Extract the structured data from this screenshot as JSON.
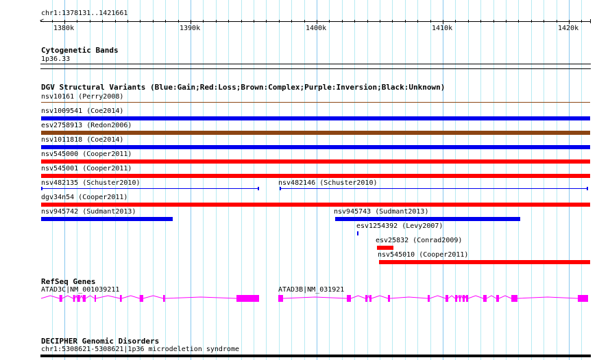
{
  "region": {
    "label": "chr1:1378131..1421661",
    "start": 1378131,
    "end": 1421661
  },
  "axis": {
    "tick_labels": [
      "1380k",
      "1390k",
      "1400k",
      "1410k",
      "1420k"
    ],
    "tick_values": [
      1380000,
      1390000,
      1400000,
      1410000,
      1420000
    ],
    "minor_step": 1000
  },
  "cytobands": {
    "title": "Cytogenetic Bands",
    "band": "1p36.33"
  },
  "dgv": {
    "title": "DGV Structural Variants (Blue:Gain;Red:Loss;Brown:Complex;Purple:Inversion;Black:Unknown)",
    "colors": {
      "gain": "#0000ee",
      "loss": "#ff0000",
      "complex": "#8b4513"
    },
    "rows": [
      [
        {
          "label": "nsv10161 (Perry2008)",
          "type": "complex",
          "start": 1378131,
          "end": 1421661,
          "thin": true
        }
      ],
      [
        {
          "label": "nsv1009541 (Coe2014)",
          "type": "gain",
          "start": 1378131,
          "end": 1421661
        }
      ],
      [
        {
          "label": "esv2758913 (Redon2006)",
          "type": "complex",
          "start": 1378131,
          "end": 1421661
        }
      ],
      [
        {
          "label": "nsv1011818 (Coe2014)",
          "type": "gain",
          "start": 1378131,
          "end": 1421661
        }
      ],
      [
        {
          "label": "nsv545000 (Cooper2011)",
          "type": "loss",
          "start": 1378131,
          "end": 1421661
        }
      ],
      [
        {
          "label": "nsv545001 (Cooper2011)",
          "type": "loss",
          "start": 1378131,
          "end": 1421661
        }
      ],
      [
        {
          "label": "nsv482135 (Schuster2010)",
          "type": "gain",
          "start": 1378131,
          "end": 1395435,
          "thin": true
        },
        {
          "label": "nsv482146 (Schuster2010)",
          "type": "gain",
          "start": 1397065,
          "end": 1421522,
          "thin": true
        }
      ],
      [
        {
          "label": "dgv34n54 (Cooper2011)",
          "type": "loss",
          "start": 1378131,
          "end": 1421661
        }
      ],
      [
        {
          "label": "nsv945742 (Sudmant2013)",
          "type": "gain",
          "start": 1378131,
          "end": 1388587
        },
        {
          "label": "nsv945743 (Sudmant2013)",
          "type": "gain",
          "start": 1401467,
          "end": 1416141
        }
      ],
      [
        {
          "label": "esv1254392 (Levy2007)",
          "type": "gain",
          "start": 1403207,
          "end": 1403300
        }
      ],
      [
        {
          "label": "esv25832 (Conrad2009)",
          "type": "loss",
          "start": 1404783,
          "end": 1406087
        }
      ],
      [
        {
          "label": "nsv545010 (Cooper2011)",
          "type": "loss",
          "start": 1404946,
          "end": 1421661
        }
      ]
    ]
  },
  "refseq": {
    "title": "RefSeq Genes",
    "color": "#ff00ff",
    "genes": [
      {
        "label": "ATAD3C|NM_001039211",
        "start": 1378152,
        "end": 1395435,
        "exons": [
          [
            1379603,
            1379821
          ],
          [
            1380690,
            1380832
          ],
          [
            1381016,
            1381234
          ],
          [
            1381451,
            1381685
          ],
          [
            1382391,
            1382500
          ],
          [
            1384402,
            1384549
          ],
          [
            1385962,
            1386250
          ],
          [
            1387826,
            1387973
          ],
          [
            1393642,
            1395435
          ]
        ]
      },
      {
        "label": "ATAD3B|NM_031921",
        "start": 1396957,
        "end": 1421522,
        "exons": [
          [
            1396957,
            1397338
          ],
          [
            1402392,
            1402718
          ],
          [
            1403860,
            1404023
          ],
          [
            1404186,
            1404349
          ],
          [
            1405653,
            1405816
          ],
          [
            1408806,
            1408969
          ],
          [
            1410219,
            1410436
          ],
          [
            1410980,
            1411143
          ],
          [
            1411306,
            1411414
          ],
          [
            1411577,
            1411740
          ],
          [
            1411849,
            1412012
          ],
          [
            1413207,
            1413479
          ],
          [
            1414241,
            1414458
          ],
          [
            1415436,
            1415925
          ],
          [
            1420708,
            1421522
          ]
        ]
      }
    ]
  },
  "decipher": {
    "title": "DECIPHER Genomic Disorders",
    "label": "chr1:5308621-5308621|1p36 microdeletion syndrome"
  }
}
